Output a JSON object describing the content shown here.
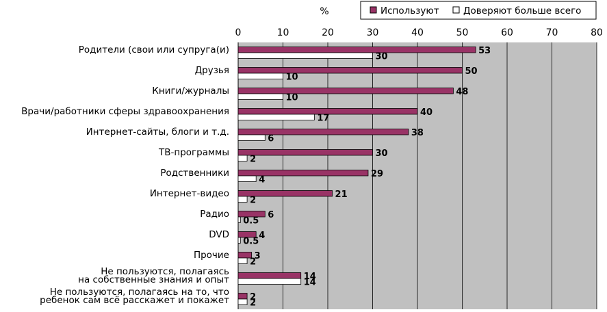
{
  "chart_data": {
    "type": "bar",
    "orientation": "horizontal",
    "unit_label": "%",
    "xlim": [
      0,
      80
    ],
    "ticks": [
      0,
      10,
      20,
      30,
      40,
      50,
      60,
      70,
      80
    ],
    "grid": true,
    "legend_position": "top-right",
    "categories": [
      [
        "Родители (свои или супруга(и)"
      ],
      [
        "Друзья"
      ],
      [
        "Книги/журналы"
      ],
      [
        "Врачи/работники сферы здравоохранения"
      ],
      [
        "Интернет-сайты, блоги и т.д."
      ],
      [
        "ТВ-программы"
      ],
      [
        "Родственники"
      ],
      [
        "Интернет-видео"
      ],
      [
        "Радио"
      ],
      [
        "DVD"
      ],
      [
        "Прочие"
      ],
      [
        "Не пользуются, полагаясь",
        "на собственные знания и опыт"
      ],
      [
        "Не пользуются, полагаясь на то, что",
        "ребенок сам всё расскажет и покажет"
      ]
    ],
    "series": [
      {
        "name": "Используют",
        "color": "#993366",
        "values": [
          53,
          50,
          48,
          40,
          38,
          30,
          29,
          21,
          6,
          4,
          3,
          14,
          2
        ]
      },
      {
        "name": "Доверяют больше всего",
        "color": "#ffffff",
        "values": [
          30,
          10,
          10,
          17,
          6,
          2,
          4,
          2,
          0.5,
          0.5,
          2,
          14,
          2
        ]
      }
    ],
    "colors": {
      "plot_area": "#c0c0c0",
      "gridline": "#000000"
    }
  }
}
